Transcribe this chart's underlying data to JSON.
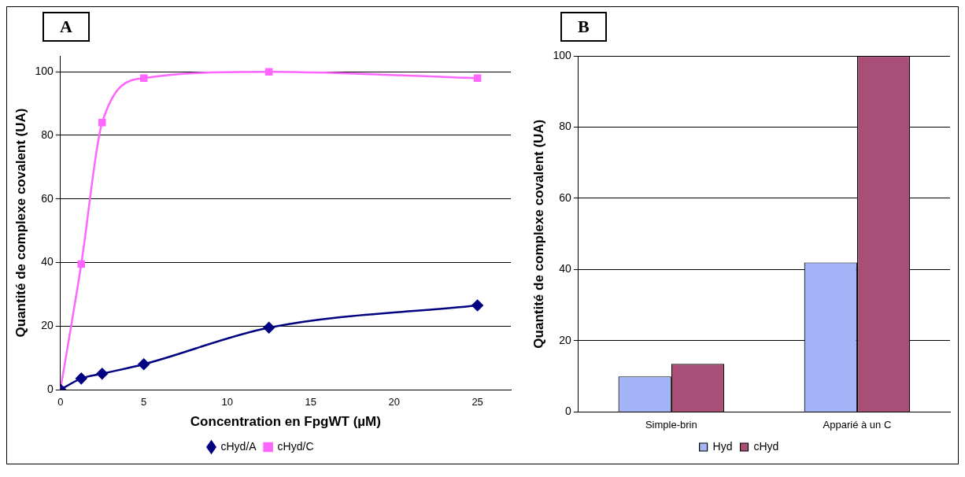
{
  "chart_data": [
    {
      "type": "line",
      "annotations": [
        "A"
      ],
      "xlabel": "Concentration en FpgWT (µM)",
      "ylabel": "Quantité de complexe covalent (UA)",
      "xlim": [
        0,
        27
      ],
      "xticks": [
        0,
        5,
        10,
        15,
        20,
        25
      ],
      "ylim": [
        0,
        105
      ],
      "yticks": [
        0,
        20,
        40,
        60,
        80,
        100
      ],
      "grid": "y",
      "legend": "bottom",
      "series": [
        {
          "name": "cHyd/A",
          "color": "#000080",
          "marker": "diamond",
          "x": [
            0,
            1.25,
            2.5,
            5,
            12.5,
            25
          ],
          "values": [
            0,
            3.5,
            5,
            8,
            19.5,
            26.5
          ]
        },
        {
          "name": "cHyd/C",
          "color": "#ff66ff",
          "marker": "square",
          "x": [
            0,
            1.25,
            2.5,
            5,
            12.5,
            25
          ],
          "values": [
            0,
            39.5,
            84,
            98,
            100,
            98
          ]
        }
      ]
    },
    {
      "type": "bar",
      "annotations": [
        "B"
      ],
      "ylabel": "Quantité de complexe covalent (UA)",
      "categories": [
        "Simple-brin",
        "Apparié à un C"
      ],
      "ylim": [
        0,
        100
      ],
      "yticks": [
        0,
        20,
        40,
        60,
        80,
        100
      ],
      "grid": "y",
      "legend": "bottom",
      "series": [
        {
          "name": "Hyd",
          "color": "#a4b4f8",
          "values": [
            10,
            42
          ]
        },
        {
          "name": "cHyd",
          "color": "#a94f77",
          "values": [
            13.5,
            100
          ]
        }
      ]
    }
  ]
}
